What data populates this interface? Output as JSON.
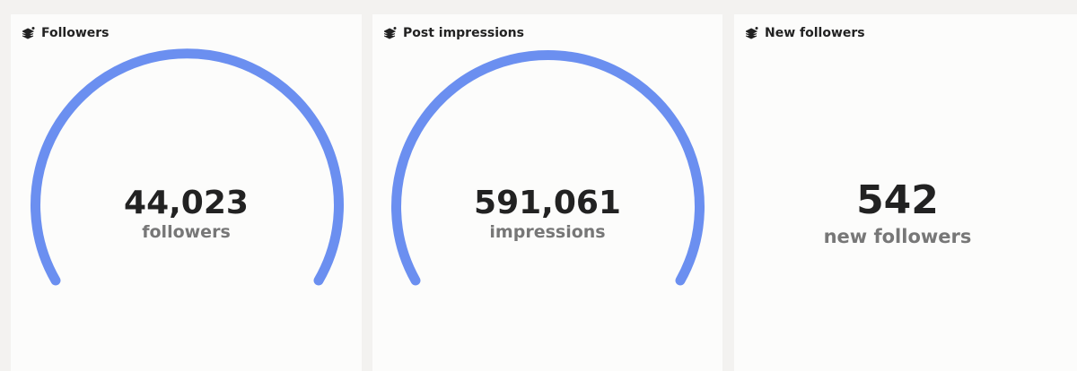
{
  "cards": [
    {
      "title": "Followers",
      "value": "44,023",
      "unit": "followers"
    },
    {
      "title": "Post impressions",
      "value": "591,061",
      "unit": "impressions"
    },
    {
      "title": "New followers",
      "value": "542",
      "unit": "new followers"
    }
  ]
}
